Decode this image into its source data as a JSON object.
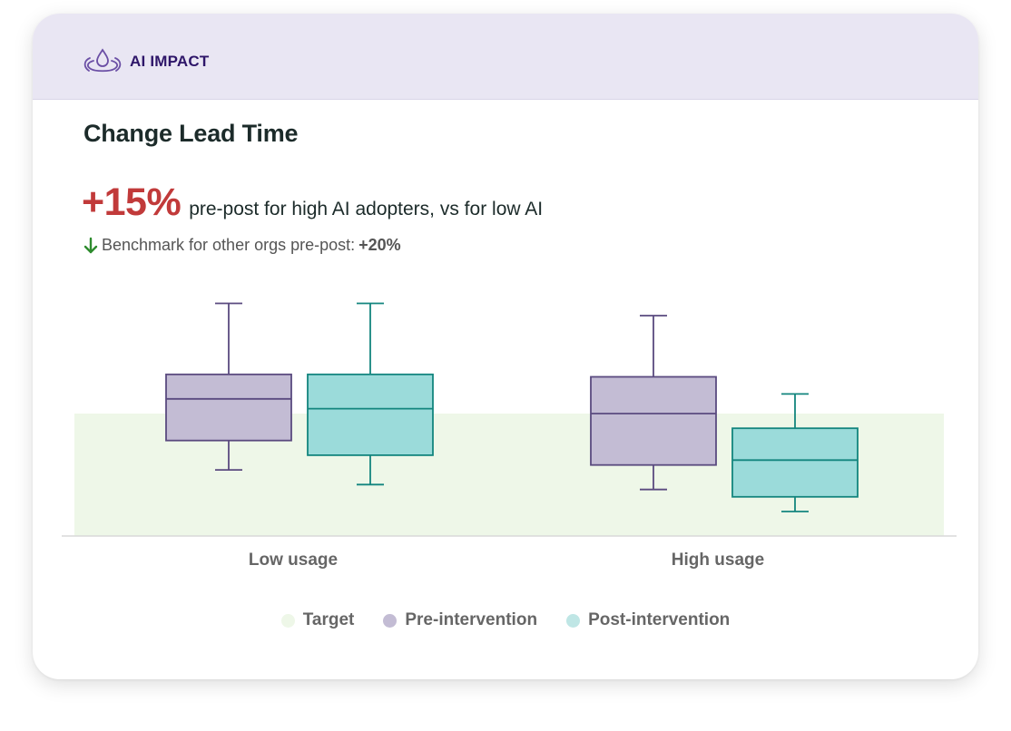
{
  "brand": {
    "name": "AI IMPACT",
    "icon": "droplet-ripple-icon",
    "color": "#6b4fa5"
  },
  "title": "Change Lead Time",
  "headline": {
    "value": "+15%",
    "text": "pre-post for high AI adopters, vs for low AI",
    "color": "#c13a3a"
  },
  "benchmark": {
    "icon": "arrow-down-icon",
    "icon_color": "#2e8b2e",
    "text": "Benchmark for other orgs pre-post: ",
    "value": "+20%"
  },
  "chart_data": {
    "type": "boxplot",
    "categories": [
      "Low usage",
      "High usage"
    ],
    "y_range": [
      0,
      100
    ],
    "target_band": [
      0,
      50
    ],
    "series": [
      {
        "name": "Pre-intervention",
        "color_fill": "#c3bcd4",
        "color_stroke": "#5a4a7f",
        "boxes": [
          {
            "min": 27,
            "q1": 39,
            "median": 56,
            "q3": 66,
            "max": 95
          },
          {
            "min": 19,
            "q1": 29,
            "median": 50,
            "q3": 65,
            "max": 90
          }
        ]
      },
      {
        "name": "Post-intervention",
        "color_fill": "#9bdbda",
        "color_stroke": "#13857e",
        "boxes": [
          {
            "min": 21,
            "q1": 33,
            "median": 52,
            "q3": 66,
            "max": 95
          },
          {
            "min": 10,
            "q1": 16,
            "median": 31,
            "q3": 44,
            "max": 58
          }
        ]
      }
    ],
    "target_color": "#eef7e8",
    "legend": [
      "Target",
      "Pre-intervention",
      "Post-intervention"
    ],
    "legend_position": "bottom"
  },
  "legend": [
    {
      "label": "Target",
      "color": "#eef7e8"
    },
    {
      "label": "Pre-intervention",
      "color": "#c3bcd4"
    },
    {
      "label": "Post-intervention",
      "color": "#bfe6e5"
    }
  ]
}
